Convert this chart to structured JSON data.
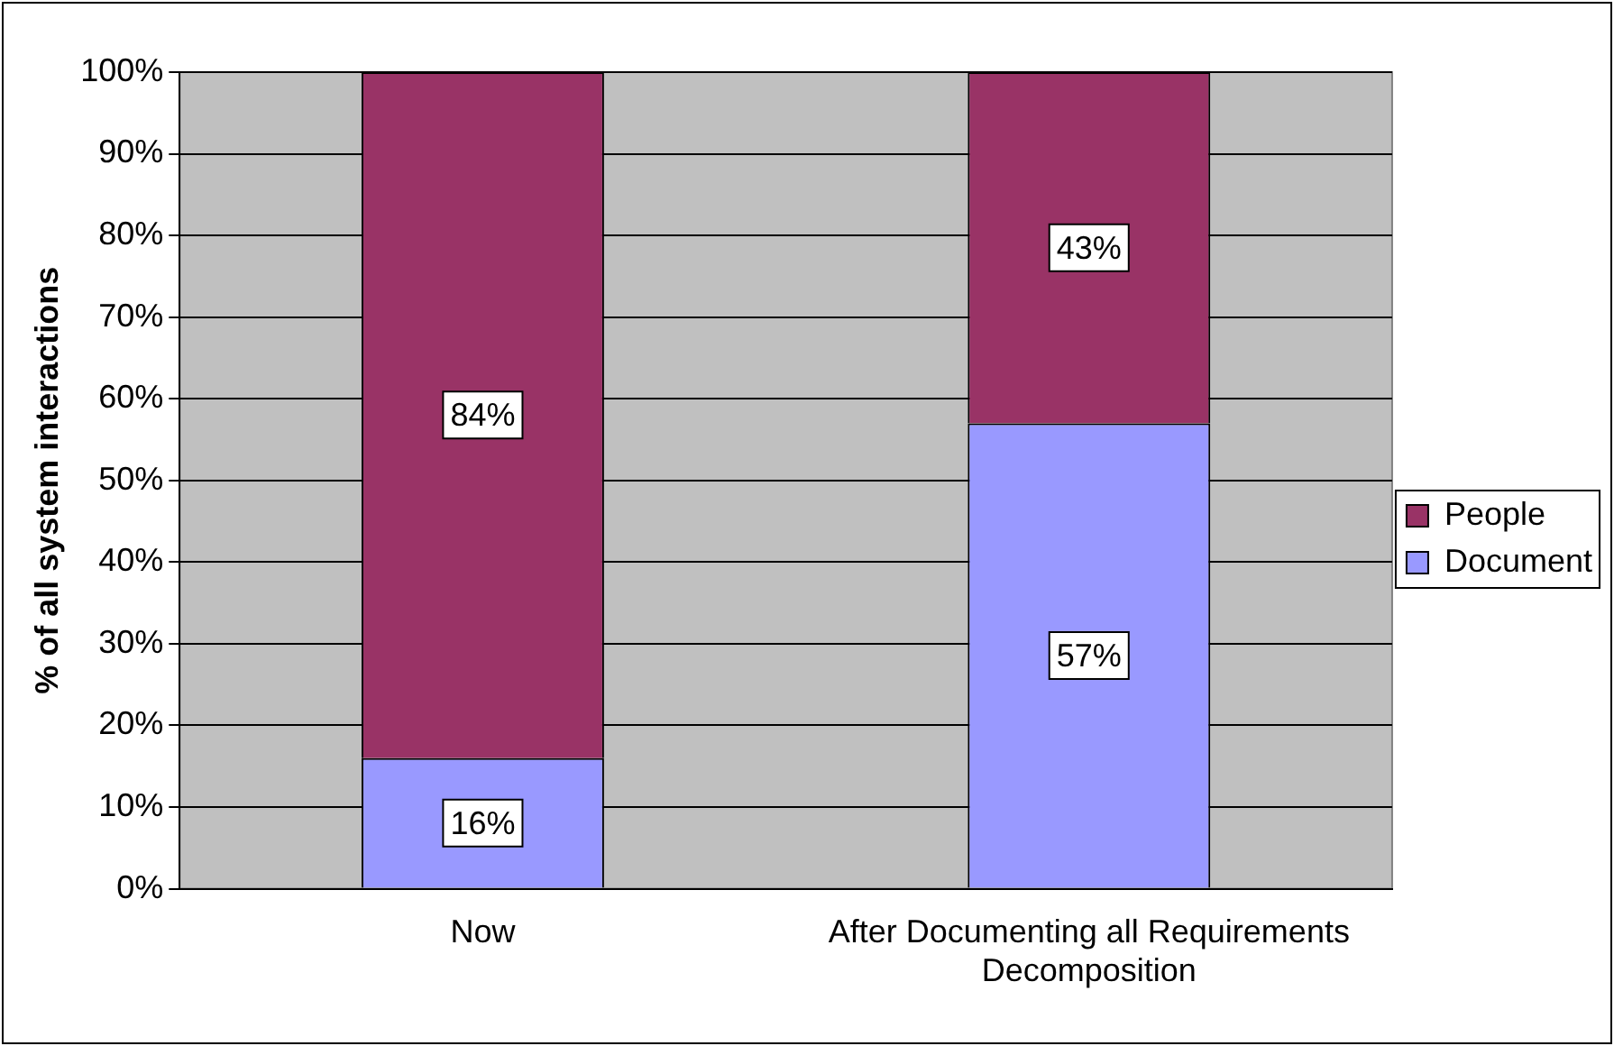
{
  "chart_data": {
    "type": "bar",
    "stacked": true,
    "ylabel": "% of all system interactions",
    "categories": [
      "Now",
      "After Documenting all Requirements Decomposition"
    ],
    "series": [
      {
        "name": "Document",
        "color": "#9999ff",
        "values": [
          16,
          57
        ],
        "value_labels": [
          "16%",
          "57%"
        ]
      },
      {
        "name": "People",
        "color": "#993366",
        "values": [
          84,
          43
        ],
        "value_labels": [
          "84%",
          "43%"
        ]
      }
    ],
    "ylim": [
      0,
      100
    ],
    "yticks": [
      {
        "value": 0,
        "label": "0%"
      },
      {
        "value": 10,
        "label": "10%"
      },
      {
        "value": 20,
        "label": "20%"
      },
      {
        "value": 30,
        "label": "30%"
      },
      {
        "value": 40,
        "label": "40%"
      },
      {
        "value": 50,
        "label": "50%"
      },
      {
        "value": 60,
        "label": "60%"
      },
      {
        "value": 70,
        "label": "70%"
      },
      {
        "value": 80,
        "label": "80%"
      },
      {
        "value": 90,
        "label": "90%"
      },
      {
        "value": 100,
        "label": "100%"
      }
    ],
    "grid": "y",
    "legend": "right"
  }
}
